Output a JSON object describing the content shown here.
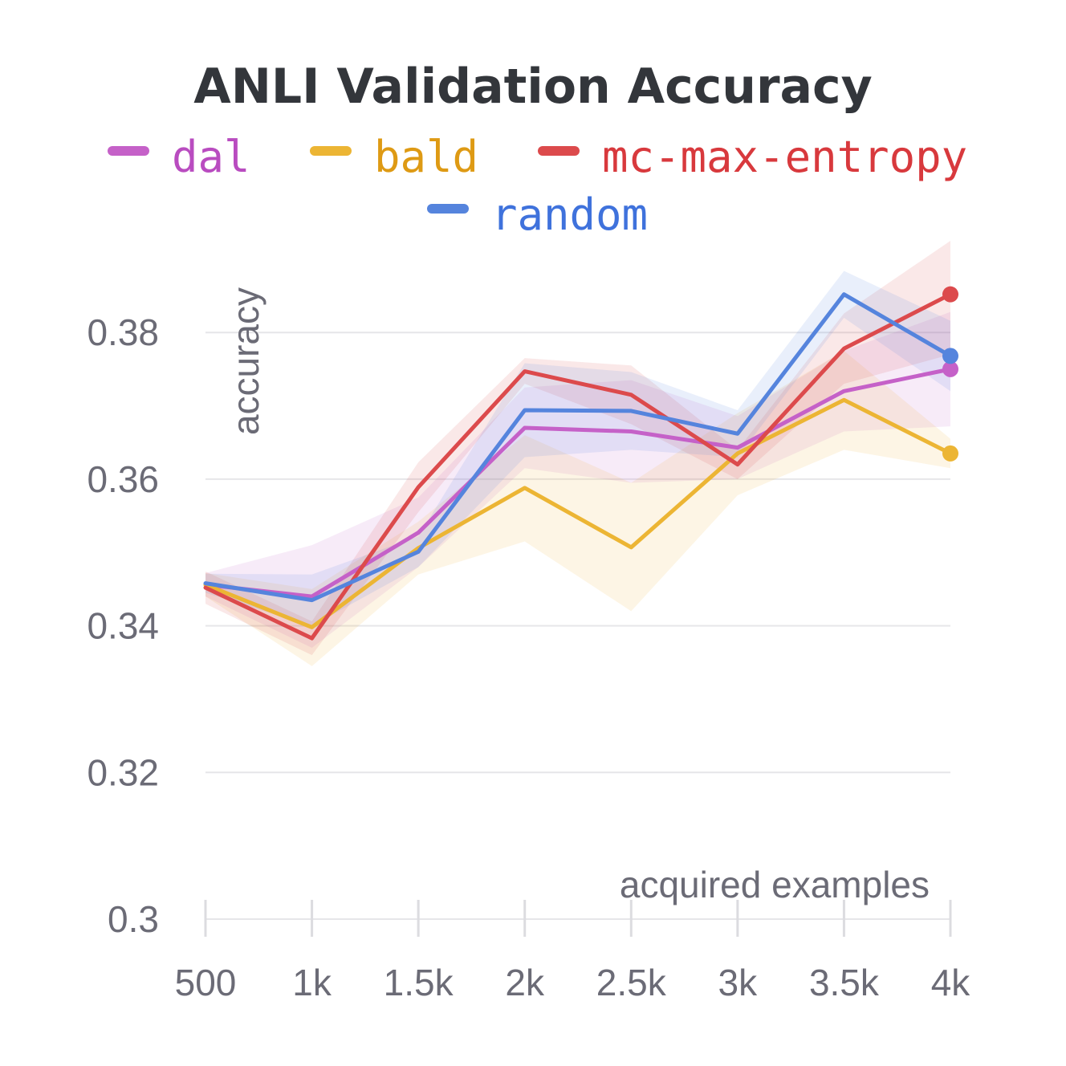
{
  "chart_data": {
    "type": "line",
    "title": "ANLI Validation Accuracy",
    "xlabel": "acquired examples",
    "ylabel": "accuracy",
    "x": [
      500,
      1000,
      1500,
      2000,
      2500,
      3000,
      3500,
      4000
    ],
    "x_tick_labels": [
      "500",
      "1k",
      "1.5k",
      "2k",
      "2.5k",
      "3k",
      "3.5k",
      "4k"
    ],
    "y_ticks": [
      0.3,
      0.32,
      0.34,
      0.36,
      0.38
    ],
    "y_tick_labels": [
      "0.3",
      "0.32",
      "0.34",
      "0.36",
      "0.38"
    ],
    "xlim": [
      500,
      4000
    ],
    "ylim": [
      0.3,
      0.3925
    ],
    "grid": true,
    "legend_position": "top",
    "series": [
      {
        "name": "dal",
        "color": "#c561c8",
        "legend_text_color": "#b94cc0",
        "values": [
          0.3456,
          0.344,
          0.3527,
          0.367,
          0.3665,
          0.3643,
          0.372,
          0.375
        ],
        "lower": [
          0.344,
          0.337,
          0.348,
          0.3615,
          0.3595,
          0.36,
          0.3665,
          0.3672
        ],
        "upper": [
          0.3472,
          0.351,
          0.3575,
          0.3725,
          0.3735,
          0.3686,
          0.3775,
          0.3828
        ]
      },
      {
        "name": "bald",
        "color": "#ecb534",
        "legend_text_color": "#de9a14",
        "values": [
          0.3456,
          0.3398,
          0.3506,
          0.3588,
          0.3507,
          0.3635,
          0.3708,
          0.3635
        ],
        "lower": [
          0.344,
          0.3345,
          0.347,
          0.3515,
          0.342,
          0.3578,
          0.364,
          0.3615
        ],
        "upper": [
          0.3472,
          0.345,
          0.3542,
          0.366,
          0.3595,
          0.369,
          0.3775,
          0.3655
        ]
      },
      {
        "name": "mc-max-entropy",
        "color": "#dc4a4c",
        "legend_text_color": "#d8393d",
        "values": [
          0.3452,
          0.3383,
          0.3589,
          0.3747,
          0.3715,
          0.362,
          0.3778,
          0.3852
        ],
        "lower": [
          0.343,
          0.336,
          0.3555,
          0.373,
          0.3675,
          0.36,
          0.373,
          0.377
        ],
        "upper": [
          0.3474,
          0.3406,
          0.3623,
          0.3765,
          0.3755,
          0.364,
          0.3826,
          0.3925
        ]
      },
      {
        "name": "random",
        "color": "#5584dd",
        "legend_text_color": "#3f72dc",
        "values": [
          0.3458,
          0.3435,
          0.3501,
          0.3694,
          0.3693,
          0.3662,
          0.3852,
          0.3768
        ],
        "lower": [
          0.3445,
          0.34,
          0.348,
          0.363,
          0.364,
          0.363,
          0.382,
          0.372
        ],
        "upper": [
          0.3471,
          0.347,
          0.3522,
          0.3758,
          0.3746,
          0.3694,
          0.3884,
          0.3816
        ]
      }
    ]
  }
}
